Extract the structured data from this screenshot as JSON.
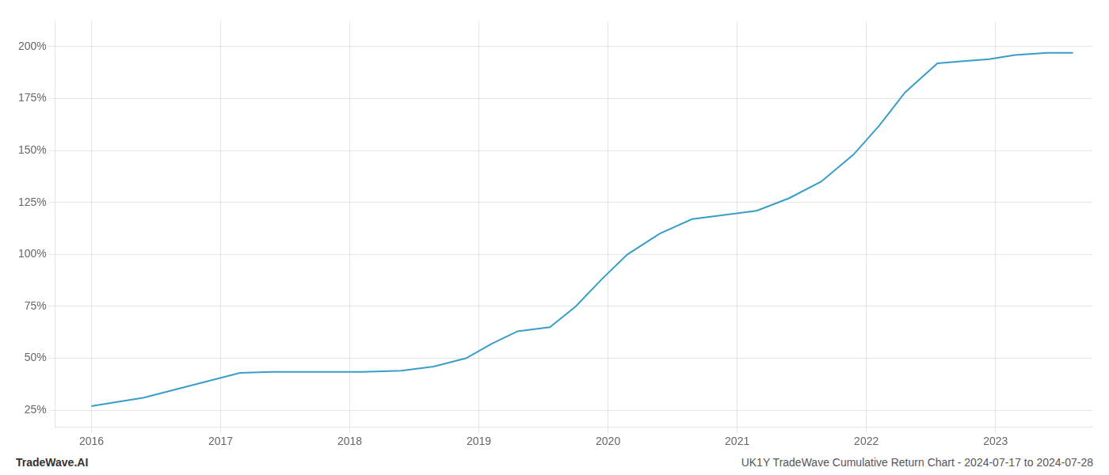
{
  "chart_data": {
    "type": "line",
    "x": [
      2016.0,
      2016.15,
      2016.4,
      2016.65,
      2016.9,
      2017.15,
      2017.4,
      2017.65,
      2017.9,
      2018.1,
      2018.4,
      2018.65,
      2018.9,
      2019.1,
      2019.3,
      2019.55,
      2019.75,
      2019.95,
      2020.15,
      2020.4,
      2020.65,
      2020.9,
      2021.15,
      2021.4,
      2021.65,
      2021.9,
      2022.1,
      2022.3,
      2022.55,
      2022.75,
      2022.95,
      2023.15,
      2023.4,
      2023.6
    ],
    "values": [
      27,
      28.5,
      31,
      35,
      39,
      43,
      43.5,
      43.5,
      43.5,
      43.5,
      44,
      46,
      50,
      57,
      63,
      65,
      75,
      88,
      100,
      110,
      117,
      119,
      121,
      127,
      135,
      148,
      162,
      178,
      192,
      193,
      194,
      196,
      197,
      197
    ],
    "color": "#3a9cc8",
    "xlim": [
      2015.72,
      2023.75
    ],
    "xticks": [
      2016,
      2017,
      2018,
      2019,
      2020,
      2021,
      2022,
      2023
    ],
    "ylim": [
      17,
      212
    ],
    "yticks": [
      {
        "value": 25,
        "label": "25%"
      },
      {
        "value": 50,
        "label": "50%"
      },
      {
        "value": 75,
        "label": "75%"
      },
      {
        "value": 100,
        "label": "100%"
      },
      {
        "value": 125,
        "label": "125%"
      },
      {
        "value": 150,
        "label": "150%"
      },
      {
        "value": 175,
        "label": "175%"
      },
      {
        "value": 200,
        "label": "200%"
      }
    ],
    "grid": true,
    "annotations": [
      "TradeWave.AI",
      "UK1Y TradeWave Cumulative Return Chart - 2024-07-17 to 2024-07-28"
    ]
  }
}
